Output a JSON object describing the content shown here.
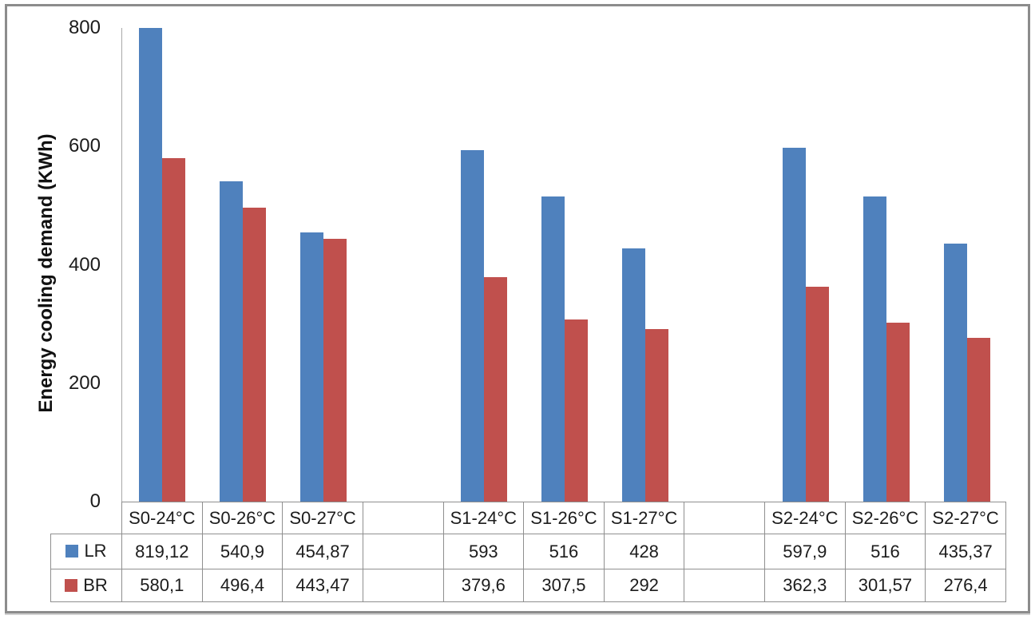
{
  "chart_data": {
    "type": "bar",
    "title": "",
    "xlabel": "",
    "ylabel": "Energy cooling demand (KWh)",
    "ylim": [
      0,
      800
    ],
    "yticks": [
      0,
      200,
      400,
      600,
      800
    ],
    "ytick_labels": [
      "0",
      "200",
      "400",
      "600",
      "800"
    ],
    "grid": false,
    "legend_position": "left-of-data-table",
    "bars_clipped_at_ymax": true,
    "categories": [
      "S0-24°C",
      "S0-26°C",
      "S0-27°C",
      "",
      "S1-24°C",
      "S1-26°C",
      "S1-27°C",
      "",
      "S2-24°C",
      "S2-26°C",
      "S2-27°C"
    ],
    "series": [
      {
        "name": "LR",
        "color": "#4F81BD",
        "values": [
          819.12,
          540.9,
          454.87,
          null,
          593,
          516,
          428,
          null,
          597.9,
          516,
          435.37
        ],
        "labels": [
          "819,12",
          "540,9",
          "454,87",
          "",
          "593",
          "516",
          "428",
          "",
          "597,9",
          "516",
          "435,37"
        ]
      },
      {
        "name": "BR",
        "color": "#C0504D",
        "values": [
          580.1,
          496.4,
          443.47,
          null,
          379.6,
          307.5,
          292,
          null,
          362.3,
          301.57,
          276.4
        ],
        "labels": [
          "580,1",
          "496,4",
          "443,47",
          "",
          "379,6",
          "307,5",
          "292",
          "",
          "362,3",
          "301,57",
          "276,4"
        ]
      }
    ]
  },
  "colors": {
    "lr_series": "#4F81BD",
    "br_series": "#C0504D",
    "table_border": "#8f8f8f",
    "axis_line": "#a8a8a8",
    "outer_frame": "#8c8c8c",
    "text": "#1c1c1c",
    "background": "#ffffff"
  }
}
